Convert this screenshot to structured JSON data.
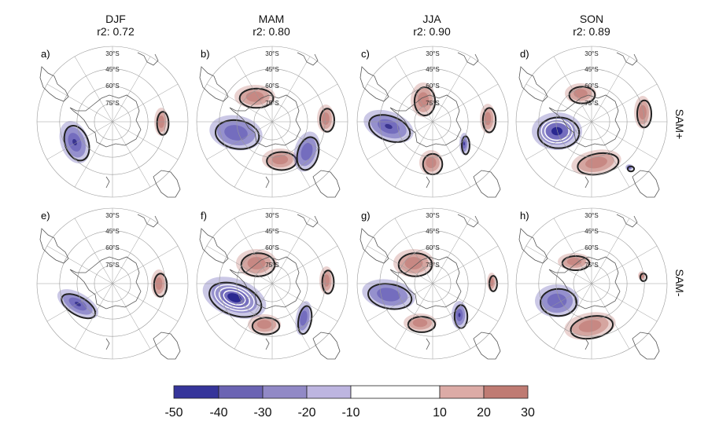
{
  "columns": [
    {
      "season": "DJF",
      "r2": "r2: 0.72"
    },
    {
      "season": "MAM",
      "r2": "r2: 0.80"
    },
    {
      "season": "JJA",
      "r2": "r2: 0.90"
    },
    {
      "season": "SON",
      "r2": "r2: 0.89"
    }
  ],
  "rows": [
    "SAM+",
    "SAM-"
  ],
  "panel_letters": [
    "a)",
    "b)",
    "c)",
    "d)",
    "e)",
    "f)",
    "g)",
    "h)"
  ],
  "latitude_labels": [
    "30°S",
    "45°S",
    "60°S",
    "75°S"
  ],
  "colorbar": {
    "ticks": [
      "-50",
      "-40",
      "-30",
      "-20",
      "-10",
      "10",
      "20",
      "30"
    ],
    "colors": [
      "#36359a",
      "#6b64b3",
      "#9189c6",
      "#bdb5e0",
      "#ffffff",
      "#dcaba6",
      "#bf7b73"
    ]
  },
  "colors": {
    "negative": "#6a62b8",
    "positive": "#c27f79",
    "grid": "#9a9a9a",
    "coast": "#555555"
  }
}
